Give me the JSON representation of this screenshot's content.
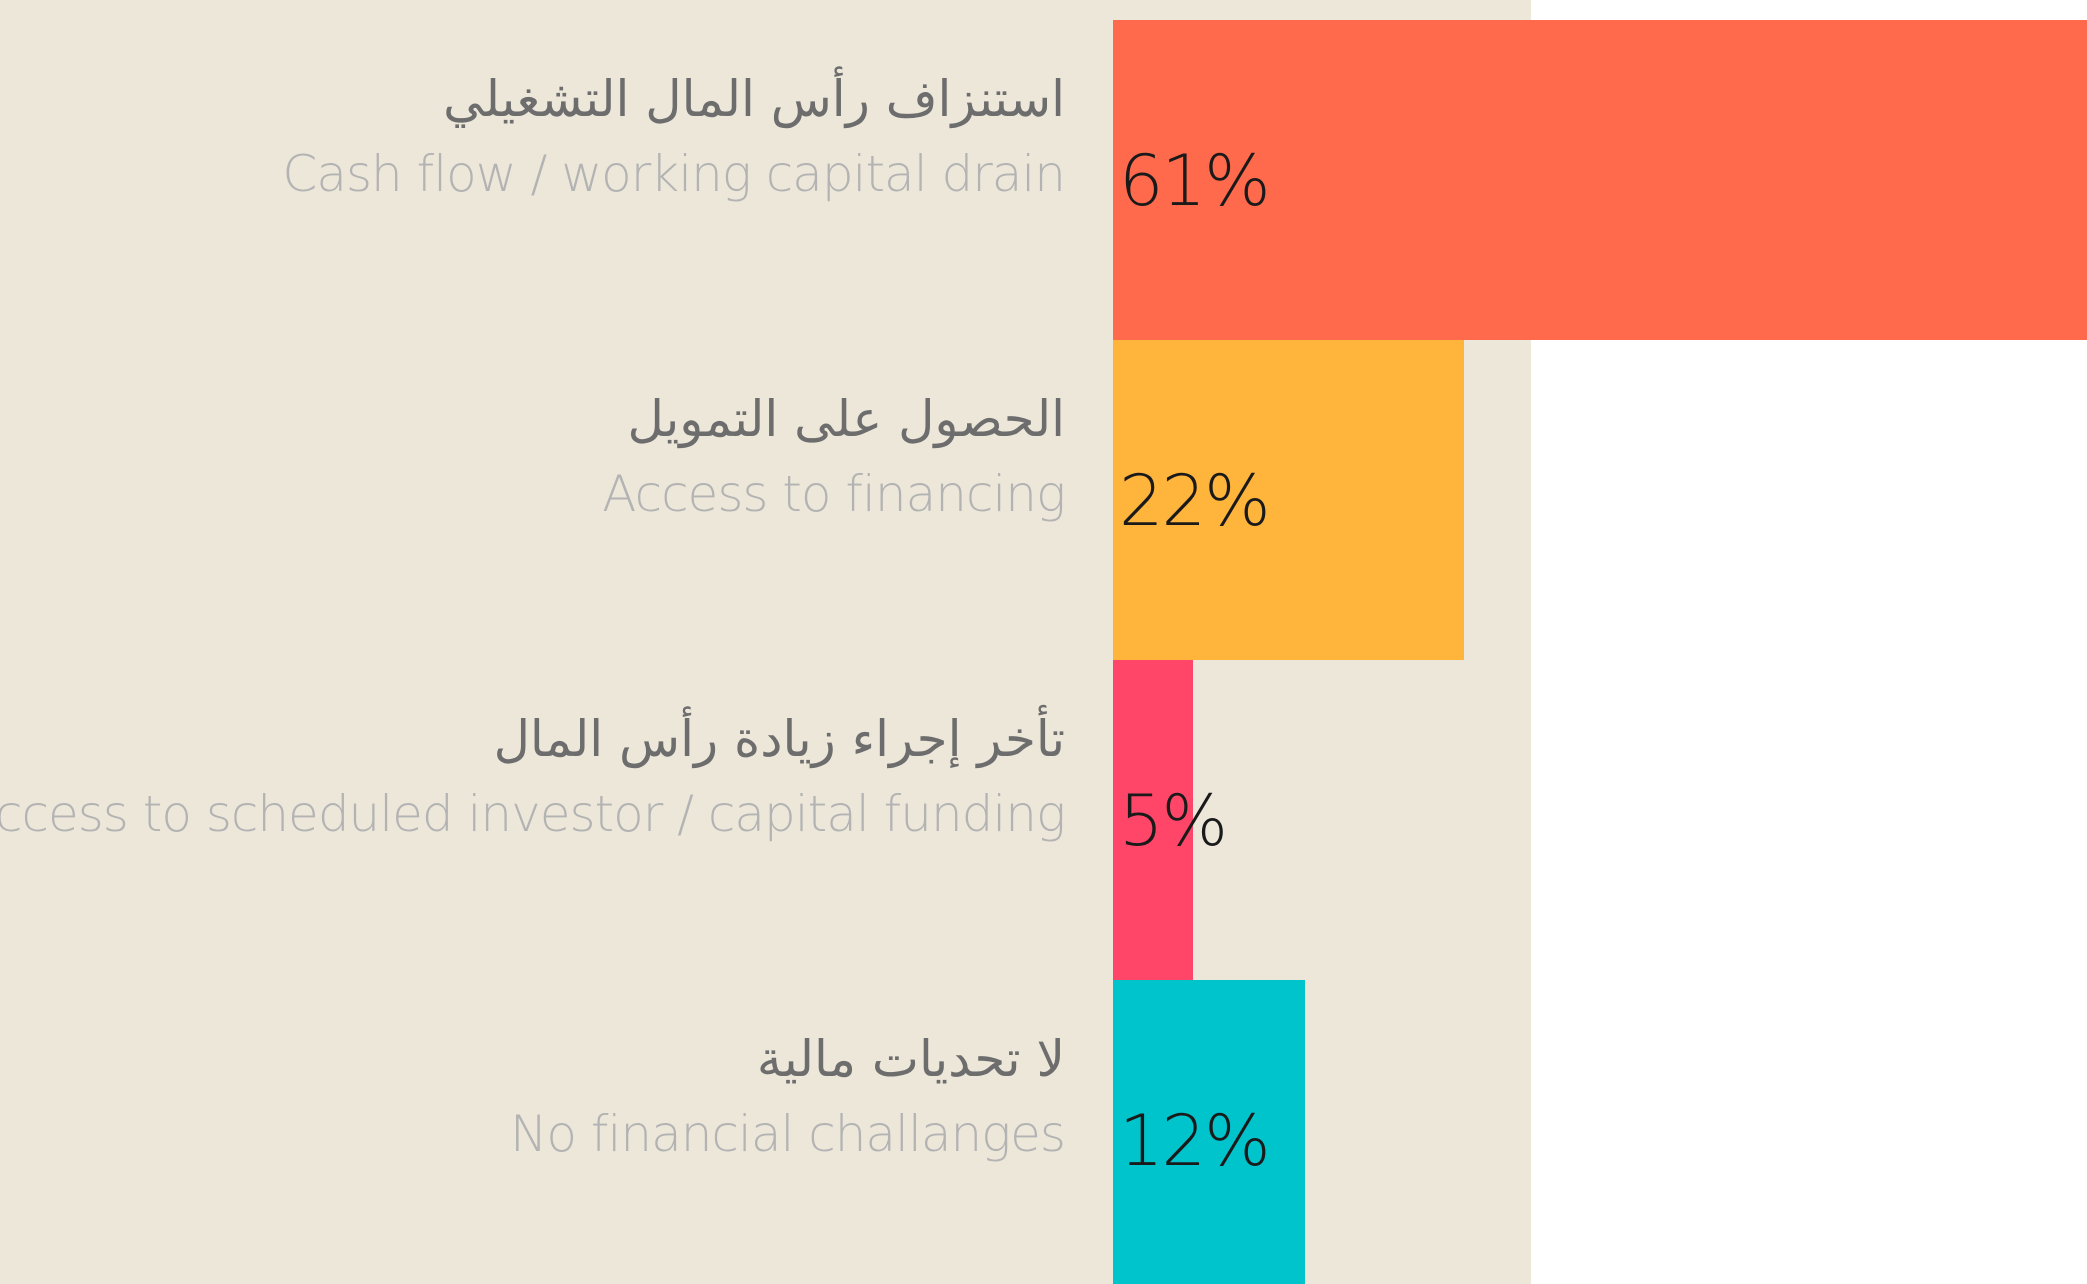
{
  "chart_data": {
    "type": "bar",
    "orientation": "horizontal",
    "categories": [
      "استنزاف رأس المال التشغيلي",
      "الحصول على التمويل",
      "تأخر إجراء زيادة رأس المال",
      "لا تحديات مالية"
    ],
    "categories_en": [
      "Cash flow / working capital drain",
      "Access to financing",
      "Access to scheduled investor / capital funding",
      "No financial challanges"
    ],
    "values": [
      61,
      22,
      5,
      12
    ],
    "value_labels": [
      "61%",
      "22%",
      "5%",
      "12%"
    ],
    "colors": [
      "#ff6a4d",
      "#ffb43c",
      "#ff4668",
      "#00c4cc"
    ],
    "xlim": [
      0,
      61
    ]
  }
}
